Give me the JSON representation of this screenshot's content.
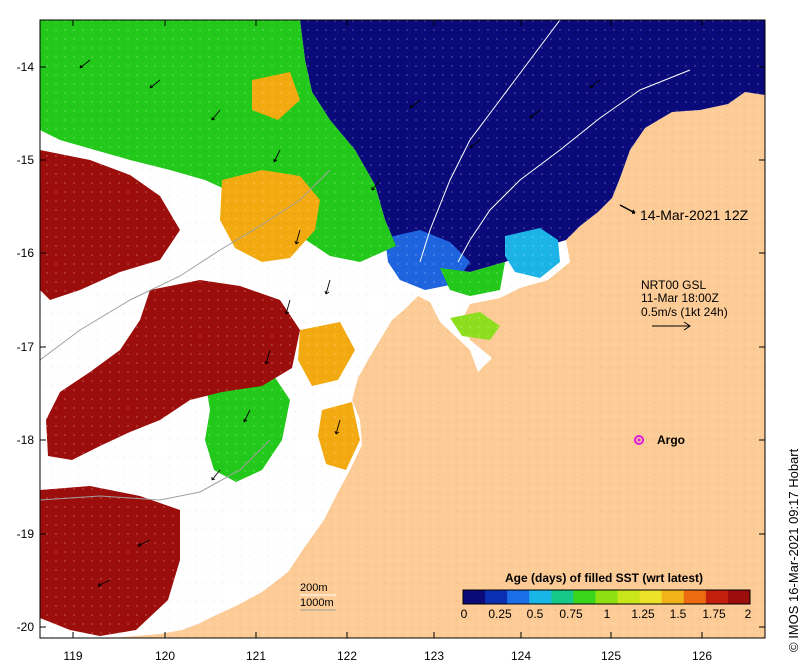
{
  "map": {
    "x_ticks": [
      "119",
      "120",
      "121",
      "122",
      "123",
      "124",
      "125",
      "126"
    ],
    "y_ticks": [
      "-14",
      "-15",
      "-16",
      "-17",
      "-18",
      "-19",
      "-20"
    ],
    "date_label": "14-Mar-2021 12Z",
    "current_legend": {
      "line1": "NRT00 GSL",
      "line2": "11-Mar 18:00Z",
      "line3": "0.5m/s (1kt 24h)"
    },
    "argo_label": "Argo",
    "contour_labels": {
      "c200": "200m",
      "c1000": "1000m"
    },
    "credit": "© IMOS 16-Mar-2021 09:17 Hobart",
    "colorbar": {
      "title": "Age (days) of filled SST (wrt latest)",
      "ticks": [
        "0",
        "0.25",
        "0.5",
        "0.75",
        "1",
        "1.25",
        "1.5",
        "1.75",
        "2"
      ],
      "colors": [
        "#0a0a7a",
        "#0a2fb0",
        "#1a6ee8",
        "#18b6e6",
        "#16c98a",
        "#3ad61c",
        "#8ee010",
        "#c8e61a",
        "#ece22a",
        "#f2b21a",
        "#ec6a12",
        "#c2200c",
        "#9c0e0c"
      ]
    },
    "colors": {
      "land": "#fccb96",
      "deep_blue": "#0a0a7a",
      "mid_blue": "#1e64de",
      "cyan": "#1cb4e6",
      "green": "#22c81a",
      "lime": "#8ede20",
      "orange": "#f2aa10",
      "darkred": "#9c0e0c",
      "argo": "#e01ce0"
    }
  }
}
